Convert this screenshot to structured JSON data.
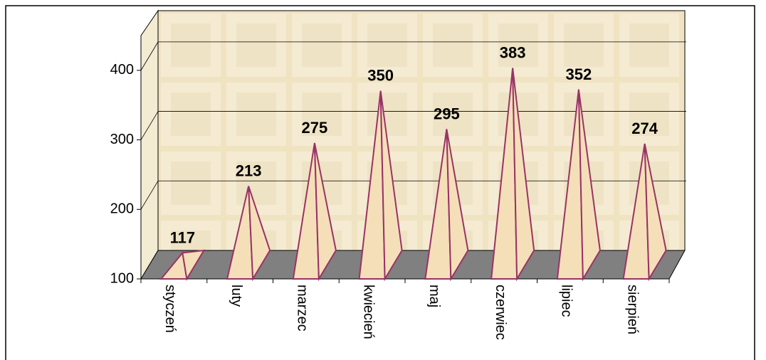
{
  "chart_data": {
    "type": "pyramid3d",
    "categories": [
      "styczeń",
      "luty",
      "marzec",
      "kwiecień",
      "maj",
      "czerwiec",
      "lipiec",
      "sierpień"
    ],
    "values": [
      117,
      213,
      275,
      350,
      295,
      383,
      352,
      274
    ],
    "color": "#f5dfb8",
    "edge_color": "#993366",
    "ylim": [
      100,
      450
    ],
    "yticks": [
      100,
      200,
      300,
      400
    ],
    "grid": true
  }
}
